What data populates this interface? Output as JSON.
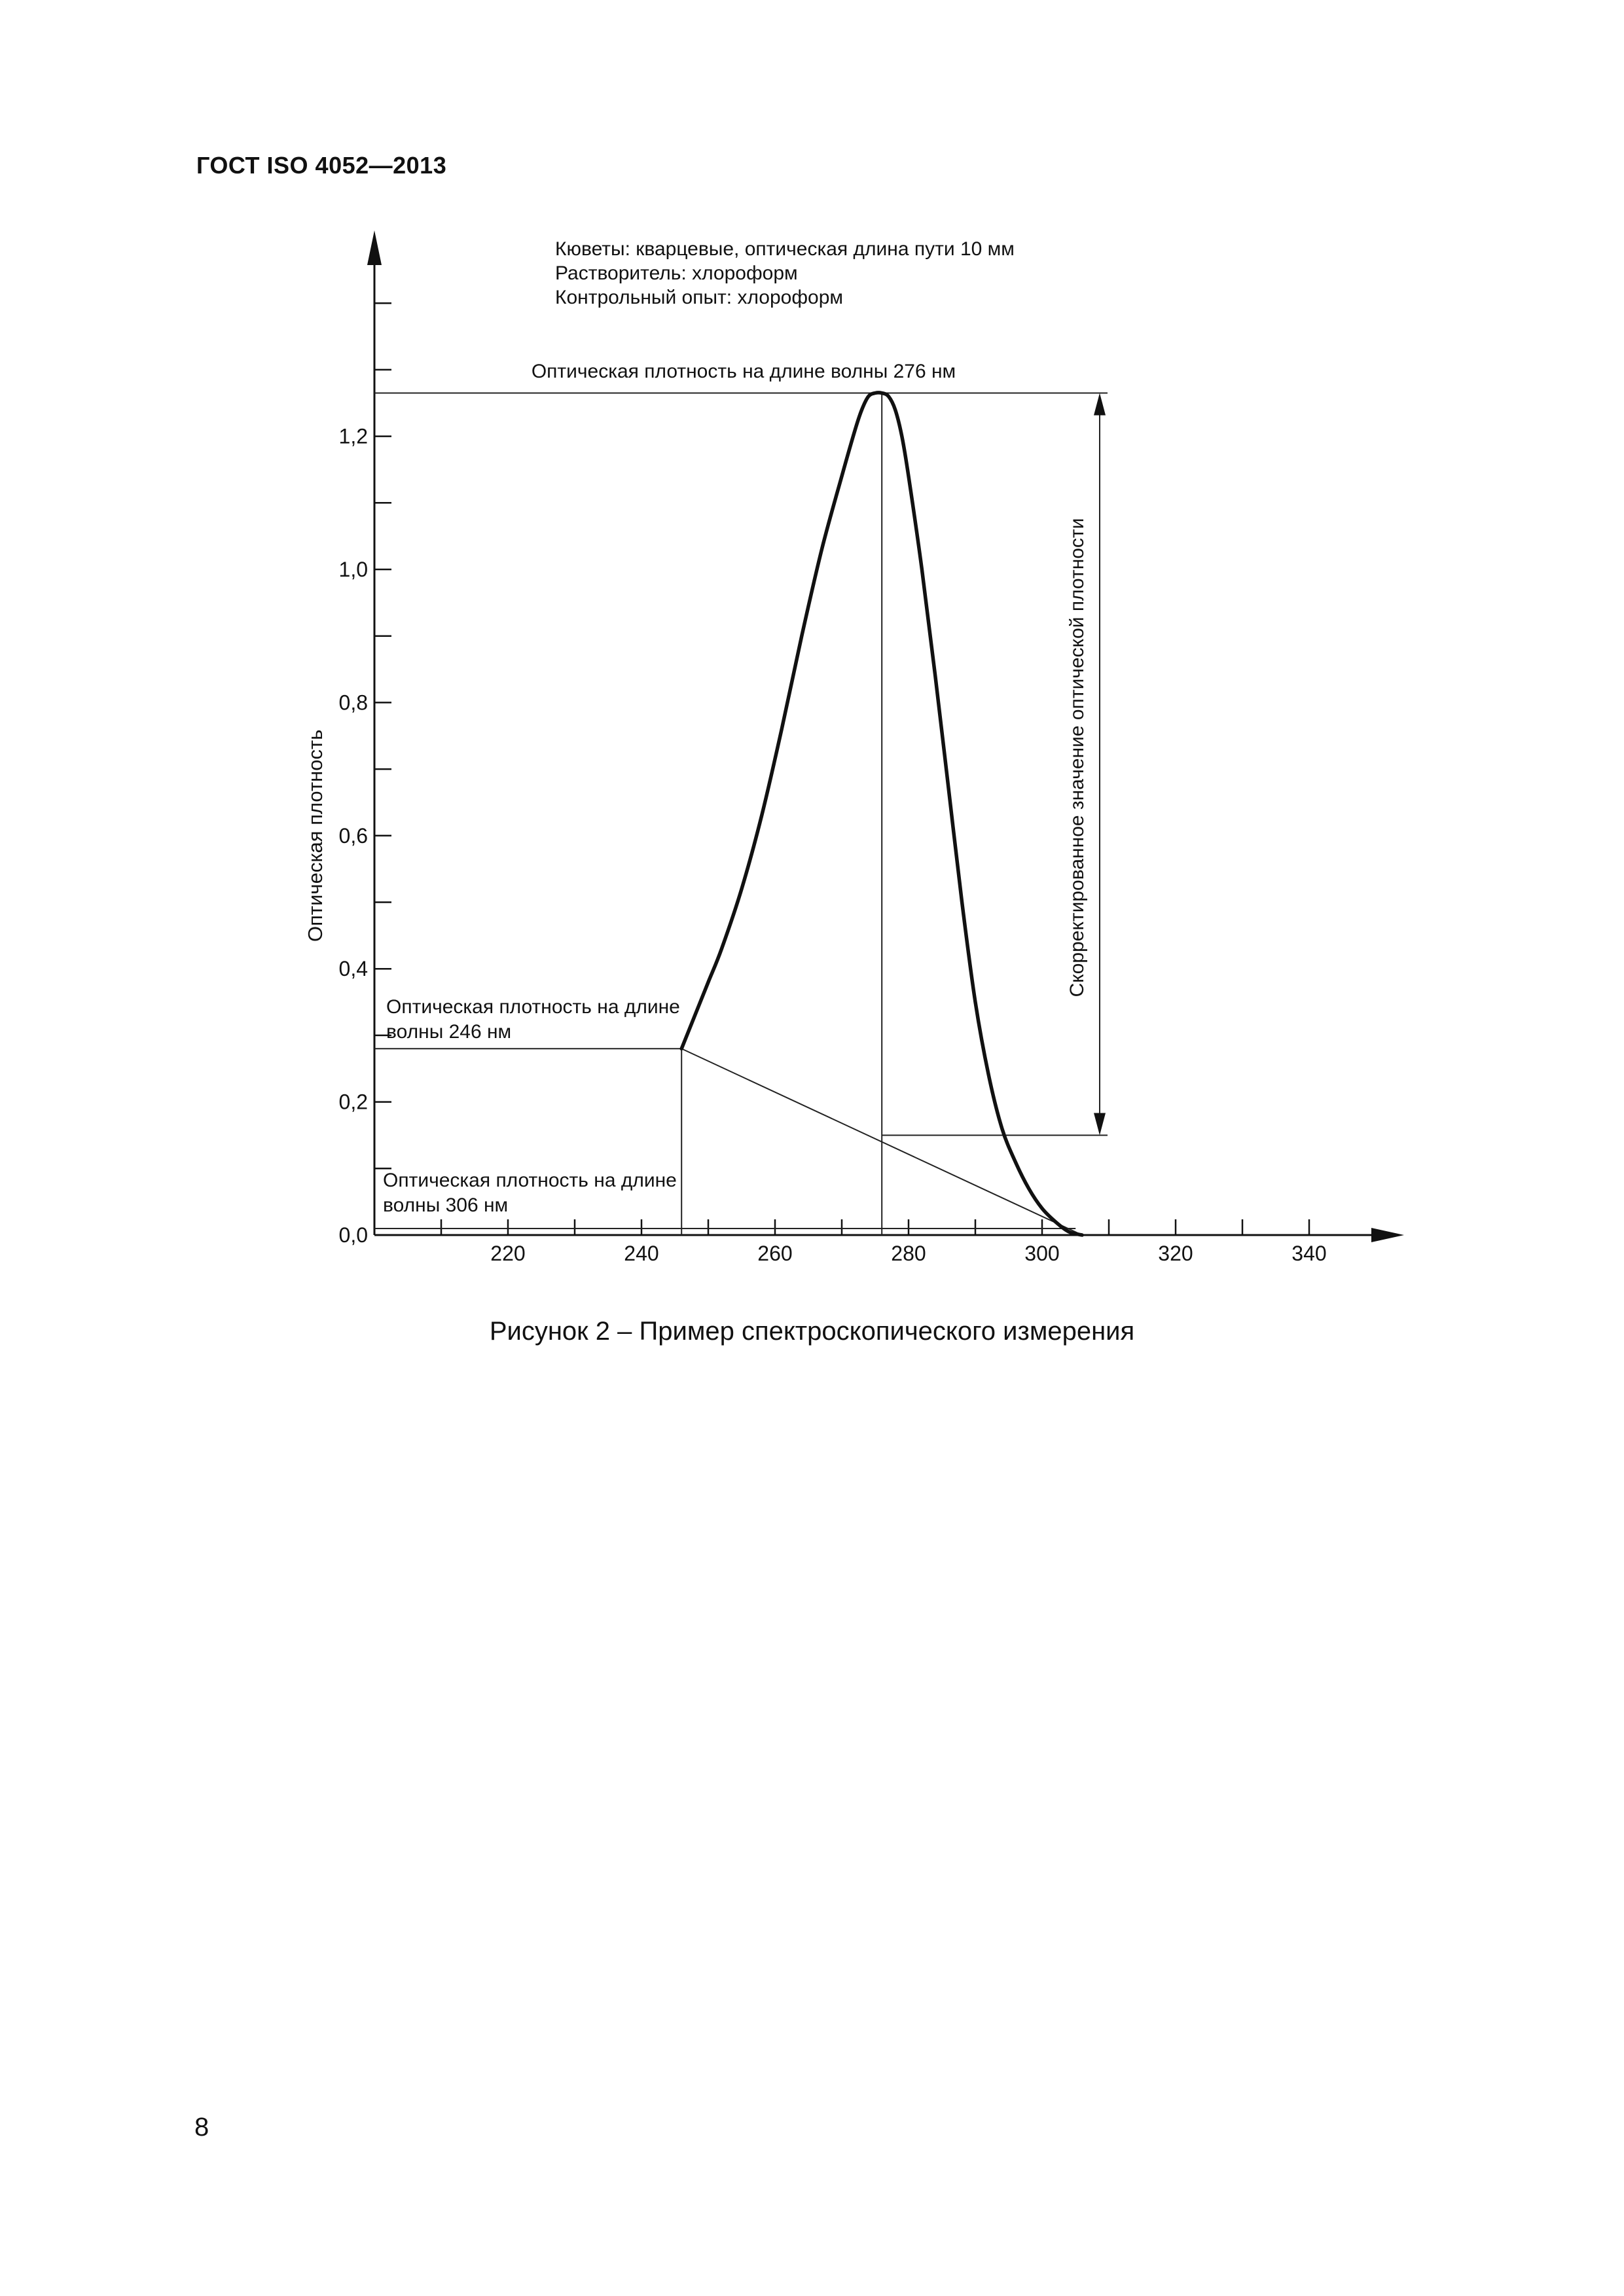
{
  "document": {
    "header": "ГОСТ ISO 4052—2013",
    "caption": "Рисунок 2 – Пример спектроскопического измерения",
    "page_number": "8"
  },
  "chart_data": {
    "type": "line",
    "notes": [
      "Кюветы: кварцевые, оптическая длина пути 10 мм",
      "Растворитель: хлороформ",
      "Контрольный опыт: хлороформ"
    ],
    "ylabel": "Оптическая плотность",
    "xlabel": "",
    "xlim": [
      200,
      350
    ],
    "ylim": [
      0,
      1.5
    ],
    "x_ticks": [
      220,
      240,
      260,
      280,
      300,
      320,
      340
    ],
    "x_tick_labels": [
      "220",
      "240",
      "260",
      "280",
      "300",
      "320",
      "340"
    ],
    "y_ticks": [
      0,
      0.2,
      0.4,
      0.6,
      0.8,
      1.0,
      1.2
    ],
    "y_tick_labels": [
      "0,0",
      "0,2",
      "0,4",
      "0,6",
      "0,8",
      "1,0",
      "1,2"
    ],
    "series": [
      {
        "x": [
          246,
          248,
          250,
          252,
          255,
          258,
          261,
          264,
          267,
          270,
          272,
          273,
          274,
          275,
          276,
          277,
          278,
          279,
          280,
          282,
          284,
          286,
          288,
          290,
          292,
          294,
          296,
          298,
          300,
          302,
          304,
          306
        ],
        "y": [
          0.28,
          0.33,
          0.38,
          0.43,
          0.52,
          0.63,
          0.76,
          0.9,
          1.03,
          1.14,
          1.21,
          1.24,
          1.26,
          1.265,
          1.265,
          1.26,
          1.24,
          1.2,
          1.14,
          1.0,
          0.84,
          0.67,
          0.5,
          0.35,
          0.24,
          0.16,
          0.11,
          0.07,
          0.04,
          0.02,
          0.005,
          0.0
        ]
      }
    ],
    "baseline": {
      "x": [
        246,
        306
      ],
      "y": [
        0.28,
        0.0
      ]
    },
    "peak": {
      "x": 276,
      "y": 1.265,
      "y_baseline": 0.15
    },
    "annotations": {
      "peak_label": "Оптическая плотность на длине волны 276 нм",
      "left_label": [
        "Оптическая плотность на длине",
        "волны 246 нм"
      ],
      "right_end_label": [
        "Оптическая плотность на длине",
        "волны 306 нм"
      ],
      "corrected_label": "Скорректированное значение оптической плотности"
    }
  }
}
